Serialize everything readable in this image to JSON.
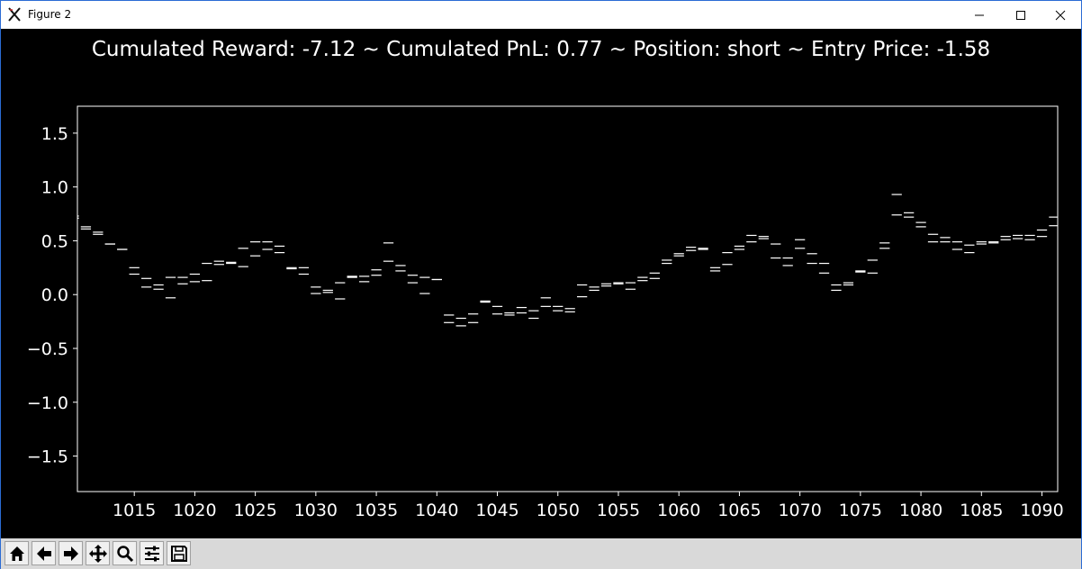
{
  "window": {
    "title": "Figure 2",
    "buttons": [
      "minimize",
      "maximize",
      "close"
    ]
  },
  "figure": {
    "title": "Cumulated Reward: -7.12 ~ Cumulated PnL: 0.77 ~ Position: short ~ Entry Price: -1.58"
  },
  "toolbar": {
    "buttons": [
      "home-icon",
      "back-icon",
      "forward-icon",
      "pan-icon",
      "zoom-icon",
      "configure-subplots-icon",
      "save-icon"
    ]
  },
  "colors": {
    "background": "#000000",
    "foreground": "#ffffff",
    "toolbar": "#d9d9d9"
  },
  "chart_data": {
    "type": "line",
    "title": "Cumulated Reward: -7.12 ~ Cumulated PnL: 0.77 ~ Position: short ~ Entry Price: -1.58",
    "xlabel": "",
    "ylabel": "",
    "xlim": [
      1010.3,
      1091.3
    ],
    "ylim": [
      -1.83,
      1.75
    ],
    "xticks": [
      1015,
      1020,
      1025,
      1030,
      1035,
      1040,
      1045,
      1050,
      1055,
      1060,
      1065,
      1070,
      1075,
      1080,
      1085,
      1090
    ],
    "yticks": [
      -1.5,
      -1.0,
      -0.5,
      0.0,
      0.5,
      1.0,
      1.5
    ],
    "ytick_labels": [
      "−1.5",
      "−1.0",
      "−0.5",
      "0.0",
      "0.5",
      "1.0",
      "1.5"
    ],
    "grid": false,
    "style": "paired horizontal bid/ask dashes per time step",
    "series": [
      {
        "x": [
          1010,
          1011,
          1012,
          1013,
          1014,
          1015,
          1016,
          1017,
          1018,
          1019,
          1020,
          1021,
          1022,
          1023,
          1024,
          1025,
          1026,
          1027,
          1028,
          1029,
          1030,
          1031,
          1032,
          1033,
          1034,
          1035,
          1036,
          1037,
          1038,
          1039,
          1040,
          1041,
          1042,
          1043,
          1044,
          1045,
          1046,
          1047,
          1048,
          1049,
          1050,
          1051,
          1052,
          1053,
          1054,
          1055,
          1056,
          1057,
          1058,
          1059,
          1060,
          1061,
          1062,
          1063,
          1064,
          1065,
          1066,
          1067,
          1068,
          1069,
          1070,
          1071,
          1072,
          1073,
          1074,
          1075,
          1076,
          1077,
          1078,
          1079,
          1080,
          1081,
          1082,
          1083,
          1084,
          1085,
          1086,
          1087,
          1088,
          1089,
          1090,
          1091
        ],
        "values": [
          0.73,
          0.63,
          0.58,
          0.47,
          0.42,
          0.19,
          0.15,
          0.09,
          0.16,
          0.16,
          0.19,
          0.29,
          0.31,
          0.29,
          0.43,
          0.49,
          0.49,
          0.45,
          0.25,
          0.25,
          0.07,
          0.04,
          0.11,
          0.17,
          0.17,
          0.23,
          0.48,
          0.22,
          0.18,
          0.16,
          0.14,
          -0.19,
          -0.22,
          -0.18,
          -0.06,
          -0.11,
          -0.17,
          -0.12,
          -0.15,
          -0.03,
          -0.11,
          -0.13,
          0.09,
          0.07,
          0.1,
          0.11,
          0.11,
          0.16,
          0.2,
          0.32,
          0.38,
          0.44,
          0.43,
          0.25,
          0.39,
          0.45,
          0.55,
          0.54,
          0.47,
          0.34,
          0.51,
          0.38,
          0.29,
          0.09,
          0.11,
          0.22,
          0.32,
          0.48,
          0.93,
          0.76,
          0.67,
          0.56,
          0.53,
          0.49,
          0.46,
          0.49,
          0.49,
          0.54,
          0.55,
          0.55,
          0.6,
          0.72
        ],
        "values2": [
          0.71,
          0.61,
          0.56,
          0.47,
          0.42,
          0.25,
          0.07,
          0.05,
          -0.03,
          0.1,
          0.12,
          0.13,
          0.28,
          0.3,
          0.26,
          0.36,
          0.42,
          0.39,
          0.24,
          0.19,
          0.01,
          0.02,
          -0.04,
          0.16,
          0.12,
          0.18,
          0.31,
          0.27,
          0.11,
          0.01,
          0.14,
          -0.26,
          -0.29,
          -0.26,
          -0.07,
          -0.18,
          -0.19,
          -0.17,
          -0.22,
          -0.11,
          -0.15,
          -0.16,
          -0.02,
          0.04,
          0.08,
          0.1,
          0.05,
          0.13,
          0.15,
          0.29,
          0.36,
          0.41,
          0.42,
          0.22,
          0.28,
          0.42,
          0.49,
          0.52,
          0.34,
          0.27,
          0.43,
          0.29,
          0.2,
          0.04,
          0.09,
          0.21,
          0.2,
          0.43,
          0.74,
          0.72,
          0.63,
          0.49,
          0.49,
          0.42,
          0.39,
          0.47,
          0.48,
          0.51,
          0.52,
          0.51,
          0.54,
          0.64
        ]
      }
    ]
  }
}
